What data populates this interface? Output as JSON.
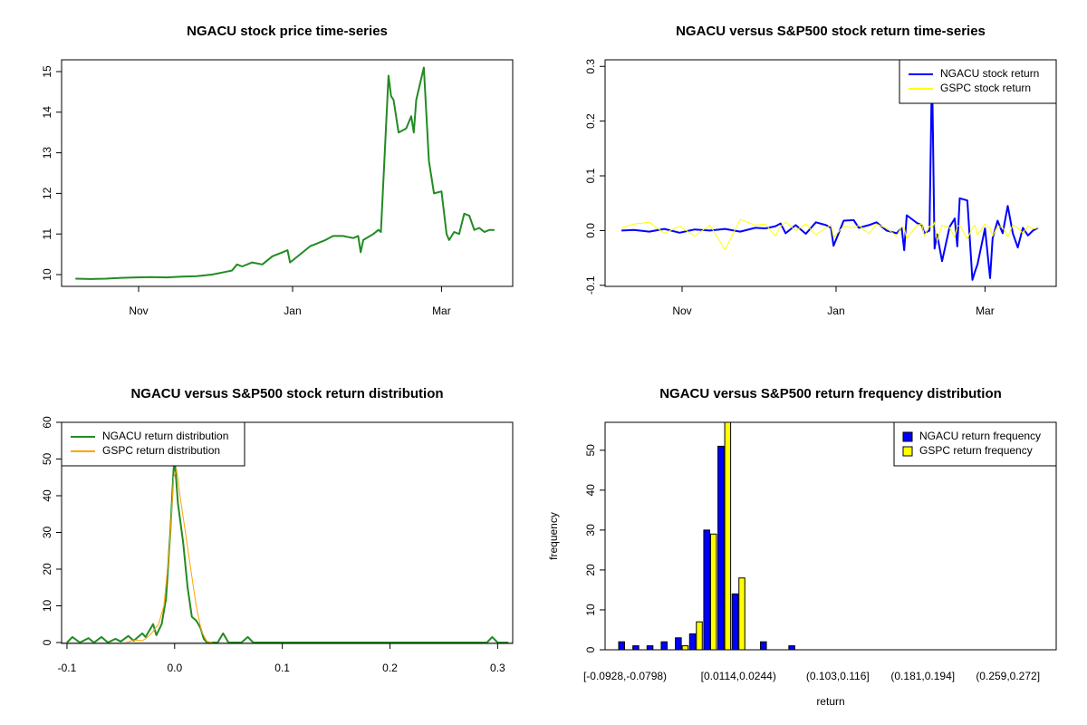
{
  "chart_data": [
    {
      "type": "line",
      "title": "NGACU stock price time-series",
      "color": "#228b22",
      "x": [
        6,
        12,
        18,
        24,
        30,
        36,
        42,
        48,
        54,
        60,
        64,
        68,
        70,
        72,
        76,
        80,
        84,
        88,
        90,
        91,
        95,
        99,
        101,
        105,
        108,
        112,
        116,
        118,
        119,
        120,
        124,
        126,
        127,
        130,
        131,
        132,
        134,
        137,
        139,
        140,
        141,
        144,
        146,
        148,
        151,
        153,
        154,
        156,
        158,
        160,
        162,
        164,
        166,
        168,
        170,
        172
      ],
      "values": [
        9.9,
        9.89,
        9.9,
        9.92,
        9.93,
        9.94,
        9.93,
        9.95,
        9.96,
        10.0,
        10.05,
        10.1,
        10.25,
        10.2,
        10.3,
        10.25,
        10.45,
        10.55,
        10.6,
        10.3,
        10.5,
        10.7,
        10.75,
        10.85,
        10.95,
        10.95,
        10.9,
        10.95,
        10.55,
        10.85,
        11.0,
        11.1,
        11.05,
        14.9,
        14.4,
        14.3,
        13.5,
        13.6,
        13.9,
        13.5,
        14.3,
        15.1,
        12.8,
        12.0,
        12.05,
        11.0,
        10.85,
        11.05,
        11.0,
        11.5,
        11.45,
        11.1,
        11.15,
        11.05,
        11.1,
        11.1
      ],
      "xlim": [
        0.5,
        179.2
      ],
      "xticks": [
        {
          "value": 31,
          "label": "Nov"
        },
        {
          "value": 92,
          "label": "Jan"
        },
        {
          "value": 151,
          "label": "Mar"
        }
      ],
      "ylim": [
        9.71,
        15.29
      ],
      "yticks": [
        10,
        11,
        12,
        13,
        14,
        15
      ]
    },
    {
      "type": "line",
      "title": "NGACU versus S&P500 stock return time-series",
      "legend": "topright",
      "x": [
        7,
        12,
        18,
        24,
        30,
        36,
        42,
        48,
        54,
        60,
        64,
        68,
        70,
        72,
        76,
        80,
        84,
        88,
        90,
        91,
        95,
        99,
        101,
        105,
        108,
        112,
        116,
        118,
        119,
        120,
        124,
        126,
        127,
        129,
        130,
        131,
        132,
        134,
        137,
        139,
        140,
        141,
        144,
        146,
        147,
        148,
        151,
        153,
        154,
        156,
        158,
        160,
        162,
        164,
        166,
        168,
        170,
        172
      ],
      "series": [
        {
          "name": "NGACU stock return",
          "color": "#0000ff",
          "values": [
            0.0,
            0.001,
            -0.002,
            0.003,
            -0.004,
            0.002,
            0.0,
            0.003,
            -0.002,
            0.005,
            0.004,
            0.008,
            0.013,
            -0.005,
            0.01,
            -0.006,
            0.015,
            0.01,
            0.005,
            -0.028,
            0.018,
            0.019,
            0.005,
            0.01,
            0.015,
            0.0,
            -0.005,
            0.005,
            -0.036,
            0.028,
            0.014,
            0.01,
            -0.005,
            0.0,
            0.3,
            -0.033,
            -0.007,
            -0.056,
            0.007,
            0.022,
            -0.029,
            0.059,
            0.055,
            -0.09,
            -0.075,
            -0.062,
            0.004,
            -0.087,
            -0.014,
            0.018,
            -0.005,
            0.045,
            -0.005,
            -0.031,
            0.005,
            -0.009,
            0.0,
            0.005
          ]
        },
        {
          "name": "GSPC stock return",
          "color": "#ffff00",
          "values": [
            0.005,
            0.012,
            0.015,
            -0.005,
            0.008,
            -0.01,
            0.01,
            -0.035,
            0.02,
            0.01,
            0.012,
            -0.01,
            0.008,
            0.015,
            0.0,
            0.012,
            -0.008,
            0.005,
            0.01,
            -0.012,
            0.008,
            0.005,
            0.01,
            -0.006,
            0.012,
            0.004,
            -0.01,
            0.007,
            0.005,
            -0.015,
            0.01,
            0.012,
            -0.01,
            0.008,
            0.005,
            0.015,
            -0.02,
            0.01,
            0.005,
            -0.012,
            0.008,
            0.01,
            -0.015,
            0.005,
            0.01,
            -0.008,
            0.012,
            0.004,
            -0.01,
            0.008,
            0.006,
            -0.012,
            0.01,
            0.005,
            -0.005,
            0.008,
            0.003,
            0.005
          ]
        }
      ],
      "xlim": [
        0.5,
        179.2
      ],
      "xticks": [
        {
          "value": 31,
          "label": "Nov"
        },
        {
          "value": 92,
          "label": "Jan"
        },
        {
          "value": 151,
          "label": "Mar"
        }
      ],
      "ylim": [
        -0.102,
        0.312
      ],
      "yticks": [
        -0.1,
        {
          "value": 0,
          "label": "0.0"
        },
        0.1,
        0.2,
        0.3
      ]
    },
    {
      "type": "density",
      "title": "NGACU versus S&P500 stock return distribution",
      "legend": "topleft",
      "series": [
        {
          "name": "NGACU return distribution",
          "color": "#228b22",
          "x": [
            -0.1,
            -0.095,
            -0.088,
            -0.08,
            -0.075,
            -0.068,
            -0.062,
            -0.055,
            -0.05,
            -0.043,
            -0.038,
            -0.03,
            -0.027,
            -0.02,
            -0.017,
            -0.012,
            -0.008,
            -0.004,
            -0.001,
            0.0,
            0.003,
            0.008,
            0.012,
            0.016,
            0.02,
            0.024,
            0.027,
            0.03,
            0.04,
            0.045,
            0.05,
            0.062,
            0.068,
            0.073,
            0.1,
            0.29,
            0.295,
            0.3,
            0.31
          ],
          "values": [
            0,
            1.5,
            0,
            1.2,
            0,
            1.5,
            0,
            1.0,
            0.3,
            1.8,
            0.5,
            2.5,
            1.5,
            5,
            2,
            5,
            12,
            30,
            47,
            50,
            38,
            27,
            15,
            7,
            6,
            4,
            1,
            0,
            0,
            2.5,
            0,
            0,
            1.5,
            0,
            0,
            0,
            1.5,
            0,
            0
          ]
        },
        {
          "name": "GSPC return distribution",
          "color": "#ffa500",
          "x": [
            -0.045,
            -0.04,
            -0.035,
            -0.03,
            -0.025,
            -0.02,
            -0.015,
            -0.01,
            -0.005,
            -0.001,
            0.002,
            0.005,
            0.01,
            0.015,
            0.02,
            0.025,
            0.03,
            0.035
          ],
          "values": [
            0,
            0.5,
            0.7,
            0.5,
            1.5,
            3,
            5,
            10,
            25,
            45,
            47,
            40,
            30,
            20,
            10,
            3,
            0.3,
            0
          ]
        }
      ],
      "xlim": [
        -0.105,
        0.314
      ],
      "xticks": [
        -0.1,
        {
          "value": 0,
          "label": "0.0"
        },
        0.1,
        0.2,
        0.3
      ],
      "ylim": [
        -0.25,
        60
      ],
      "yticks": [
        0,
        10,
        20,
        30,
        40,
        50,
        60
      ]
    },
    {
      "type": "bar",
      "title": "NGACU versus S&P500 return frequency distribution",
      "legend": "topright",
      "xlabel": "return",
      "ylabel": "frequency",
      "categories": [
        "[-0.0928,-0.0798)",
        null,
        null,
        null,
        null,
        null,
        null,
        null,
        "[0.0114,0.0244)",
        null,
        null,
        null,
        null,
        null,
        null,
        "(0.103,0.116]",
        null,
        null,
        null,
        null,
        null,
        "(0.181,0.194]",
        null,
        null,
        null,
        null,
        null,
        "(0.259,0.272]",
        null,
        null
      ],
      "series": [
        {
          "name": "NGACU return frequency",
          "color": "#0000ff",
          "values": [
            2,
            1,
            1,
            2,
            3,
            4,
            30,
            51,
            14,
            0,
            2,
            0,
            1,
            0,
            0,
            0,
            0,
            0,
            0,
            0,
            0,
            0,
            0,
            0,
            0,
            0,
            0,
            0,
            0,
            0
          ]
        },
        {
          "name": "GSPC return frequency",
          "color": "#ffff00",
          "values": [
            0,
            0,
            0,
            0,
            1,
            7,
            29,
            57,
            18,
            0,
            0,
            0,
            0,
            0,
            0,
            0,
            0,
            0,
            0,
            0,
            0,
            0,
            0,
            0,
            0,
            0,
            0,
            0,
            0,
            0
          ]
        }
      ],
      "ylim": [
        0,
        57
      ],
      "yticks": [
        0,
        10,
        20,
        30,
        40,
        50
      ]
    }
  ]
}
